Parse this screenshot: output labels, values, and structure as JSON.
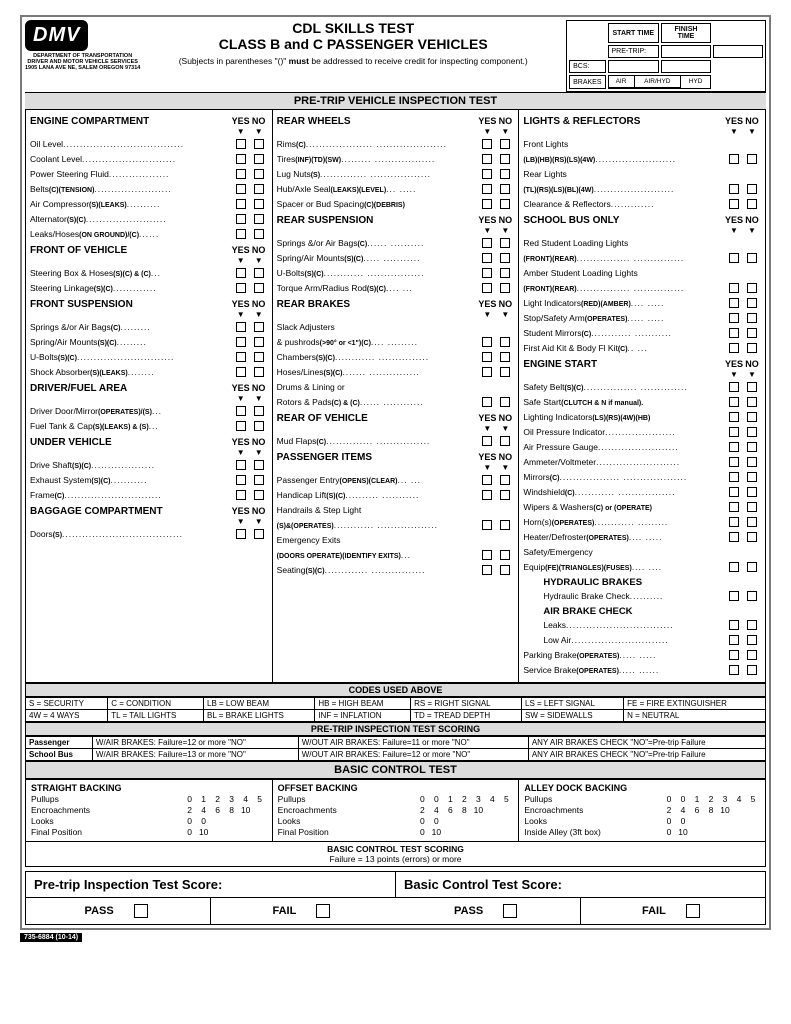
{
  "logo": "DMV",
  "dept": [
    "DEPARTMENT OF TRANSPORTATION",
    "DRIVER AND MOTOR VEHICLE SERVICES",
    "1905 LANA AVE NE, SALEM OREGON 97314"
  ],
  "title1": "CDL SKILLS TEST",
  "title2": "CLASS B and C PASSENGER VEHICLES",
  "subNote": "(Subjects in parentheses \"()\" must be addressed to receive credit for inspecting component.)",
  "timeHdr": {
    "start": "START TIME",
    "finish": "FINISH TIME",
    "pretrip": "PRE-TRIP:",
    "bcs": "BCS:",
    "brakes": "BRAKES",
    "air": "AIR",
    "airhyd": "AIR/HYD",
    "hyd": "HYD"
  },
  "bar1": "PRE-TRIP VEHICLE INSPECTION TEST",
  "yes": "YES",
  "no": "NO",
  "col1": [
    {
      "h": "ENGINE COMPARTMENT"
    },
    {
      "t": "Oil Level",
      "d": "...................................."
    },
    {
      "t": "Coolant Level",
      "d": "............................"
    },
    {
      "t": "Power Steering Fluid",
      "d": ".................."
    },
    {
      "t": "Belts",
      "s": "(C)(TENSION)",
      "d": "......................."
    },
    {
      "t": "Air Compressor",
      "s": "(S)(LEAKS)",
      "d": ".........."
    },
    {
      "t": "Alternator",
      "s": "(S)(C)",
      "d": "........................"
    },
    {
      "t": "Leaks/Hoses",
      "s": "(ON GROUND)/(C)",
      "d": "......"
    },
    {
      "h": "FRONT OF VEHICLE"
    },
    {
      "t": "Steering Box & Hoses",
      "s": "(S)(C) & (C)",
      "d": "..."
    },
    {
      "t": "Steering Linkage",
      "s": "(S)(C)",
      "d": "............."
    },
    {
      "h": "FRONT SUSPENSION"
    },
    {
      "t": "Springs &/or Air Bags",
      "s": "(C)",
      "d": "........."
    },
    {
      "t": "Spring/Air Mounts",
      "s": "(S)(C)",
      "d": "........."
    },
    {
      "t": "U-Bolts",
      "s": "(S)(C)",
      "d": "............................."
    },
    {
      "t": "Shock Absorber",
      "s": "(S)(LEAKS)",
      "d": "........"
    },
    {
      "h": "DRIVER/FUEL AREA"
    },
    {
      "t": "Driver Door/Mirror",
      "s": "(OPERATES)/(S)",
      "d": "..."
    },
    {
      "t": "Fuel Tank & Cap",
      "s": "(S)(LEAKS) & (S)",
      "d": "..."
    },
    {
      "h": "UNDER VEHICLE"
    },
    {
      "t": "Drive Shaft",
      "s": "(S)(C)",
      "d": "..................."
    },
    {
      "t": "Exhaust System",
      "s": "(S)(C)",
      "d": "..........."
    },
    {
      "t": "Frame",
      "s": "(C)",
      "d": "............................."
    },
    {
      "h": "BAGGAGE COMPARTMENT"
    },
    {
      "t": "Doors",
      "s": "(S)",
      "d": "...................................."
    }
  ],
  "col2": [
    {
      "h": "REAR WHEELS"
    },
    {
      "t": "Rims",
      "s": "(C)",
      "d": "....................    ....................."
    },
    {
      "t": "Tires",
      "s": "(INF)(TD)(SW)",
      "d": ".........    .................."
    },
    {
      "t": "Lug Nuts",
      "s": "(S)",
      "d": "..............    .................."
    },
    {
      "t": "Hub/Axle Seal",
      "s": "(LEAKS)(LEVEL)",
      "d": "...    ....."
    },
    {
      "t": "Spacer or Bud Spacing",
      "s": "(C)(DEBRIS)",
      "d": ""
    },
    {
      "h": "REAR SUSPENSION"
    },
    {
      "t": "Springs &/or Air Bags",
      "s": "(C)",
      "d": "......    .........."
    },
    {
      "t": "Spring/Air Mounts",
      "s": "(S)(C)",
      "d": ".....    ..........."
    },
    {
      "t": "U-Bolts",
      "s": "(S)(C)",
      "d": "............    ................."
    },
    {
      "t": "Torque Arm/Radius Rod",
      "s": "(S)(C)",
      "d": "....    ..."
    },
    {
      "h": "REAR BRAKES"
    },
    {
      "t": "Slack Adjusters",
      "noc": true
    },
    {
      "t": "& pushrods",
      "s": "(>90° or <1\")(C)",
      "d": "....    ........."
    },
    {
      "t": "Chambers",
      "s": "(S)(C)",
      "d": "............    ..............."
    },
    {
      "t": "Hoses/Lines",
      "s": "(S)(C)",
      "d": ".......    ..............."
    },
    {
      "t": "Drums & Lining or",
      "noc": true
    },
    {
      "t": "Rotors & Pads",
      "s": "(C) & (C)",
      "d": "......    ............"
    },
    {
      "h": "REAR OF VEHICLE"
    },
    {
      "t": "Mud Flaps",
      "s": "(C)",
      "d": "..............    ................"
    },
    {
      "h": "PASSENGER ITEMS"
    },
    {
      "t": "Passenger Entry",
      "s": "(OPENS)(CLEAR)",
      "d": "...    ..."
    },
    {
      "t": "Handicap Lift",
      "s": "(S)(C)",
      "d": "..........    ..........."
    },
    {
      "t": "Handrails & Step Light",
      "noc": true
    },
    {
      "t": "",
      "s": "(S)&(OPERATES)",
      "d": "............    .................."
    },
    {
      "t": "Emergency Exits",
      "noc": true
    },
    {
      "t": "",
      "s": "(DOORS OPERATE)(IDENTIFY EXITS)",
      "d": "..."
    },
    {
      "t": "Seating",
      "s": "(S)(C)",
      "d": ".............    ................"
    }
  ],
  "col3": [
    {
      "h": "LIGHTS & REFLECTORS"
    },
    {
      "t": "Front Lights",
      "noc": true
    },
    {
      "t": "",
      "s": "(LB)(HB)(RS)(LS)(4W)",
      "d": "........................"
    },
    {
      "t": "Rear Lights",
      "noc": true
    },
    {
      "t": "",
      "s": "(TL)(RS)(LS)(BL)(4W)",
      "d": "........................"
    },
    {
      "t": "Clearance & Reflectors",
      "d": "............."
    },
    {
      "h": "SCHOOL BUS ONLY"
    },
    {
      "t": "Red Student Loading Lights",
      "noc": true
    },
    {
      "t": "",
      "s": "(FRONT)(REAR)",
      "d": "................    ..............."
    },
    {
      "t": "Amber Student Loading Lights",
      "noc": true
    },
    {
      "t": "",
      "s": "(FRONT)(REAR)",
      "d": "................    ..............."
    },
    {
      "t": "Light Indicators",
      "s": "(RED)(AMBER)",
      "d": "....    ....."
    },
    {
      "t": "Stop/Safety Arm",
      "s": "(OPERATES)",
      "d": ".....    ....."
    },
    {
      "t": "Student Mirrors",
      "s": "(C)",
      "d": "............    ..........."
    },
    {
      "t": "First Aid Kit & Body Fl Kit",
      "s": "(C)",
      "d": "..    ..."
    },
    {
      "h": "ENGINE START"
    },
    {
      "t": "Safety Belt",
      "s": "(S)(C)",
      "d": "................    .............."
    },
    {
      "t": "Safe Start",
      "s": "(CLUTCH & N if manual).",
      "d": ""
    },
    {
      "t": "Lighting Indicators",
      "s": "(LS)(RS)(4W)(HB)",
      "d": " "
    },
    {
      "t": "Oil Pressure Indicator",
      "d": "....................."
    },
    {
      "t": "Air Pressure Gauge",
      "d": "........................"
    },
    {
      "t": "Ammeter/Voltmeter",
      "d": "........................."
    },
    {
      "t": "Mirrors",
      "s": "(C)",
      "d": "..................    ..................."
    },
    {
      "t": "Windshield",
      "s": "(C)",
      "d": "............    ................."
    },
    {
      "t": "Wipers & Washers",
      "s": "(C) or (OPERATE)",
      "d": " "
    },
    {
      "t": "Horn(s)",
      "s": "(OPERATES)",
      "d": "............    ........."
    },
    {
      "t": "Heater/Defroster",
      "s": "(OPERATES)",
      "d": "....    ....."
    },
    {
      "t": "Safety/Emergency",
      "noc": true
    },
    {
      "t": "Equip",
      "s": "(FE)(TRIANGLES)(FUSES)",
      "d": "....    ...."
    },
    {
      "sub": "HYDRAULIC BRAKES"
    },
    {
      "t": "Hydraulic Brake Check",
      "d": "..........",
      "ind": 1
    },
    {
      "sub": "AIR BRAKE CHECK"
    },
    {
      "t": "Leaks",
      "d": "................................",
      "ind": 1
    },
    {
      "t": "Low Air",
      "d": ".............................",
      "ind": 1
    },
    {
      "t": "Parking Brake",
      "s": "(OPERATES)",
      "d": ".....    .....",
      "ind": 0
    },
    {
      "t": "Service Brake",
      "s": "(OPERATES)",
      "d": ".....    ......",
      "ind": 0
    }
  ],
  "codesBar": "CODES USED ABOVE",
  "codes": [
    [
      "S = SECURITY",
      "C = CONDITION",
      "LB = LOW BEAM",
      "HB = HIGH BEAM",
      "RS = RIGHT SIGNAL",
      "LS = LEFT SIGNAL",
      "FE = FIRE EXTINGUISHER"
    ],
    [
      "4W = 4 WAYS",
      "TL = TAIL LIGHTS",
      "BL = BRAKE LIGHTS",
      "INF = INFLATION",
      "TD = TREAD DEPTH",
      "SW = SIDEWALLS",
      "N = NEUTRAL"
    ]
  ],
  "scoreBar": "PRE-TRIP INSPECTION TEST SCORING",
  "scoring": [
    [
      "Passenger",
      "W/AIR BRAKES: Failure=12 or more \"NO\"",
      "W/OUT AIR BRAKES: Failure=11 or more \"NO\"",
      "ANY AIR BRAKES CHECK \"NO\"=Pre-trip Failure"
    ],
    [
      "School Bus",
      "W/AIR BRAKES: Failure=13 or more \"NO\"",
      "W/OUT AIR BRAKES: Failure=12 or more \"NO\"",
      "ANY AIR BRAKES CHECK \"NO\"=Pre-trip Failure"
    ]
  ],
  "bctBar": "BASIC CONTROL TEST",
  "bct": [
    {
      "title": "STRAIGHT BACKING",
      "rows": [
        [
          "Pullups",
          "0",
          "1",
          "2",
          "3",
          "4",
          "5"
        ],
        [
          "Encroachments",
          "2",
          "4",
          "6",
          "8",
          "10",
          ""
        ],
        [
          "Looks",
          "0",
          "0",
          "",
          "",
          "",
          ""
        ],
        [
          "Final Position",
          "0",
          "10",
          "",
          "",
          "",
          ""
        ]
      ]
    },
    {
      "title": "OFFSET BACKING",
      "rows": [
        [
          "Pullups",
          "0",
          "0",
          "1",
          "2",
          "3",
          "4",
          "5"
        ],
        [
          "Encroachments",
          "2",
          "4",
          "6",
          "8",
          "10",
          "",
          ""
        ],
        [
          "Looks",
          "0",
          "0",
          "",
          "",
          "",
          "",
          ""
        ],
        [
          "Final Position",
          "0",
          "10",
          "",
          "",
          "",
          "",
          ""
        ]
      ]
    },
    {
      "title": "ALLEY DOCK BACKING",
      "rows": [
        [
          "Pullups",
          "0",
          "0",
          "1",
          "2",
          "3",
          "4",
          "5"
        ],
        [
          "Encroachments",
          "2",
          "4",
          "6",
          "8",
          "10",
          "",
          ""
        ],
        [
          "Looks",
          "0",
          "0",
          "",
          "",
          "",
          "",
          ""
        ],
        [
          "Inside Alley (3ft box)",
          "0",
          "10",
          "",
          "",
          "",
          "",
          ""
        ]
      ]
    }
  ],
  "bctScoring": "BASIC CONTROL TEST SCORING",
  "bctFail": "Failure = 13 points (errors) or more",
  "score1": "Pre-trip Inspection Test Score:",
  "score2": "Basic Control Test Score:",
  "pass": "PASS",
  "fail": "FAIL",
  "formNo": "735-6884 (10-14)"
}
